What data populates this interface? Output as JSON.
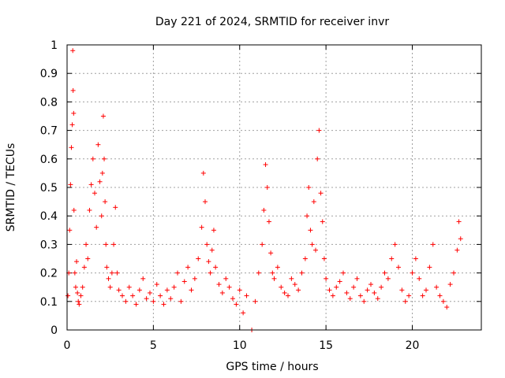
{
  "chart_data": {
    "type": "scatter",
    "title": "Day 221 of 2024, SRMTID for receiver invr",
    "xlabel": "GPS time / hours",
    "ylabel": "SRMTID / TECUs",
    "xlim": [
      0,
      24
    ],
    "ylim": [
      0,
      1
    ],
    "x_ticks": [
      0,
      5,
      10,
      15,
      20
    ],
    "x_tick_labels": [
      "0",
      "5",
      "10",
      "15",
      "20"
    ],
    "y_ticks": [
      0,
      0.1,
      0.2,
      0.3,
      0.4,
      0.5,
      0.6,
      0.7,
      0.8,
      0.9,
      1
    ],
    "y_tick_labels": [
      "0",
      "0.1",
      "0.2",
      "0.3",
      "0.4",
      "0.5",
      "0.6",
      "0.7",
      "0.8",
      "0.9",
      "1"
    ],
    "grid": true,
    "marker": "plus",
    "marker_color": "#ff0000",
    "series": [
      {
        "name": "SRMTID",
        "x": [
          0.05,
          0.1,
          0.15,
          0.2,
          0.25,
          0.3,
          0.33,
          0.35,
          0.38,
          0.4,
          0.45,
          0.5,
          0.55,
          0.6,
          0.65,
          0.7,
          0.8,
          0.9,
          1.0,
          1.1,
          1.2,
          1.3,
          1.4,
          1.5,
          1.6,
          1.7,
          1.8,
          1.9,
          2.0,
          2.05,
          2.1,
          2.15,
          2.2,
          2.25,
          2.3,
          2.4,
          2.5,
          2.6,
          2.7,
          2.8,
          2.9,
          3.0,
          3.2,
          3.4,
          3.6,
          3.8,
          4.0,
          4.2,
          4.4,
          4.6,
          4.8,
          5.0,
          5.2,
          5.4,
          5.6,
          5.8,
          6.0,
          6.2,
          6.4,
          6.6,
          6.8,
          7.0,
          7.2,
          7.4,
          7.6,
          7.8,
          7.9,
          8.0,
          8.1,
          8.2,
          8.3,
          8.4,
          8.5,
          8.6,
          8.8,
          9.0,
          9.2,
          9.4,
          9.6,
          9.8,
          10.0,
          10.2,
          10.4,
          10.7,
          10.9,
          11.1,
          11.3,
          11.4,
          11.5,
          11.6,
          11.7,
          11.8,
          11.9,
          12.0,
          12.2,
          12.4,
          12.6,
          12.8,
          13.0,
          13.2,
          13.4,
          13.6,
          13.8,
          13.9,
          14.0,
          14.1,
          14.2,
          14.3,
          14.4,
          14.5,
          14.6,
          14.7,
          14.8,
          14.9,
          15.0,
          15.2,
          15.4,
          15.6,
          15.8,
          16.0,
          16.2,
          16.4,
          16.6,
          16.8,
          17.0,
          17.2,
          17.4,
          17.6,
          17.8,
          18.0,
          18.2,
          18.4,
          18.6,
          18.8,
          19.0,
          19.2,
          19.4,
          19.6,
          19.8,
          20.0,
          20.2,
          20.4,
          20.6,
          20.8,
          21.0,
          21.2,
          21.4,
          21.6,
          21.8,
          22.0,
          22.2,
          22.4,
          22.6,
          22.7,
          22.8
        ],
        "y": [
          0.12,
          0.2,
          0.35,
          0.51,
          0.64,
          0.72,
          0.98,
          0.84,
          0.76,
          0.42,
          0.2,
          0.15,
          0.24,
          0.13,
          0.1,
          0.09,
          0.12,
          0.15,
          0.22,
          0.3,
          0.25,
          0.42,
          0.51,
          0.6,
          0.48,
          0.36,
          0.65,
          0.52,
          0.4,
          0.55,
          0.75,
          0.6,
          0.45,
          0.3,
          0.22,
          0.18,
          0.15,
          0.2,
          0.3,
          0.43,
          0.2,
          0.14,
          0.12,
          0.1,
          0.15,
          0.12,
          0.09,
          0.14,
          0.18,
          0.11,
          0.13,
          0.1,
          0.16,
          0.12,
          0.09,
          0.14,
          0.11,
          0.15,
          0.2,
          0.1,
          0.17,
          0.22,
          0.14,
          0.18,
          0.25,
          0.36,
          0.55,
          0.45,
          0.3,
          0.24,
          0.2,
          0.28,
          0.35,
          0.22,
          0.16,
          0.13,
          0.18,
          0.15,
          0.11,
          0.09,
          0.14,
          0.06,
          0.12,
          0.0,
          0.1,
          0.2,
          0.3,
          0.42,
          0.58,
          0.5,
          0.38,
          0.27,
          0.2,
          0.18,
          0.22,
          0.15,
          0.13,
          0.12,
          0.18,
          0.16,
          0.14,
          0.2,
          0.25,
          0.4,
          0.5,
          0.35,
          0.3,
          0.45,
          0.28,
          0.6,
          0.7,
          0.48,
          0.38,
          0.25,
          0.18,
          0.14,
          0.12,
          0.15,
          0.17,
          0.2,
          0.13,
          0.11,
          0.15,
          0.18,
          0.12,
          0.1,
          0.14,
          0.16,
          0.13,
          0.11,
          0.15,
          0.2,
          0.18,
          0.25,
          0.3,
          0.22,
          0.14,
          0.1,
          0.12,
          0.2,
          0.25,
          0.18,
          0.12,
          0.14,
          0.22,
          0.3,
          0.15,
          0.12,
          0.1,
          0.08,
          0.16,
          0.2,
          0.28,
          0.38,
          0.32
        ]
      }
    ]
  }
}
